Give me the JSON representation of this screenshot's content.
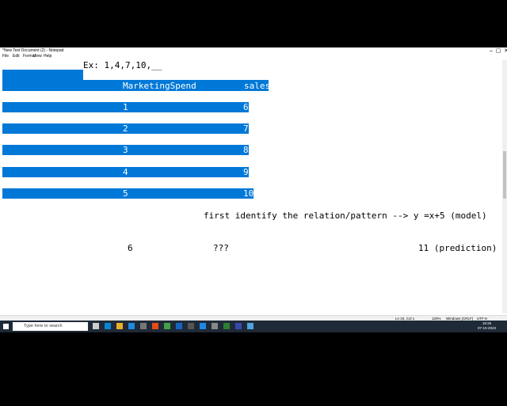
{
  "window": {
    "title": "*New Text Document (2) - Notepad",
    "menu": [
      "File",
      "Edit",
      "Format",
      "View",
      "Help"
    ]
  },
  "editor": {
    "example": "Ex: 1,4,7,10,__",
    "table": {
      "headers": [
        "MarketingSpend",
        "sales"
      ],
      "rows": [
        [
          1,
          6
        ],
        [
          2,
          7
        ],
        [
          3,
          8
        ],
        [
          4,
          9
        ],
        [
          5,
          10
        ]
      ]
    },
    "note": "first identify the relation/pattern --> y =x+5 (model)",
    "prediction": [
      "6",
      "???",
      "11 (prediction)"
    ]
  },
  "status": [
    "Ln 34, Col 1",
    "120%",
    "Windows (CRLF)",
    "UTF-8"
  ],
  "taskbar": {
    "search": "Type here to search",
    "time": "18:25",
    "date": "07-10-2023"
  }
}
